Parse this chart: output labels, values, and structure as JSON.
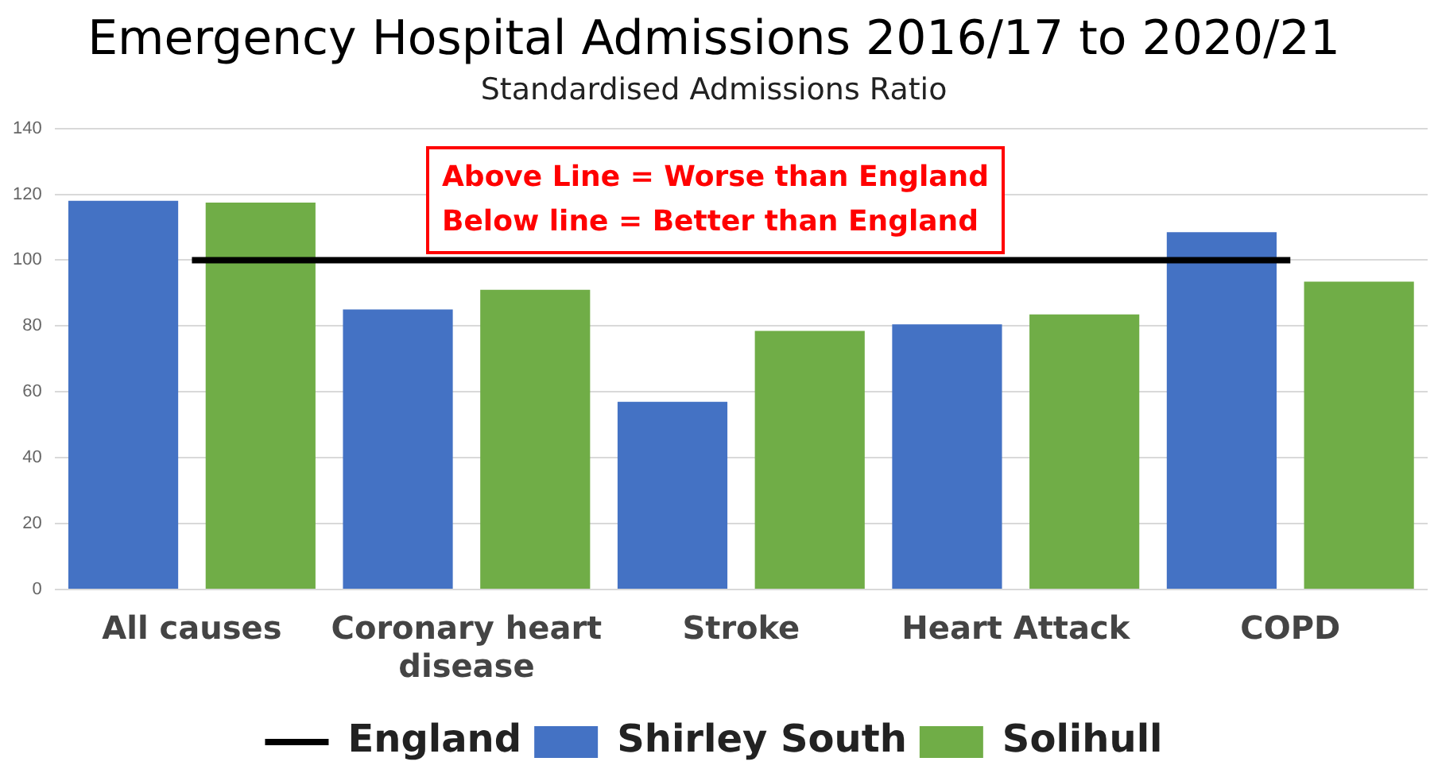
{
  "chart_data": {
    "type": "bar",
    "title": "Emergency Hospital Admissions 2016/17 to 2020/21",
    "subtitle": "Standardised Admissions Ratio",
    "categories": [
      "All causes",
      "Coronary heart disease",
      "Stroke",
      "Heart Attack",
      "COPD"
    ],
    "series": [
      {
        "name": "Shirley South",
        "color": "#4472c4",
        "values": [
          118,
          85,
          57,
          80.5,
          108.5
        ]
      },
      {
        "name": "Solihull",
        "color": "#70ad47",
        "values": [
          117.5,
          91,
          78.5,
          83.5,
          93.5
        ]
      },
      {
        "name": "England",
        "type": "line",
        "color": "#000000",
        "values": [
          100,
          100,
          100,
          100,
          100
        ]
      }
    ],
    "ylim": [
      0,
      140
    ],
    "yticks": [
      0,
      20,
      40,
      60,
      80,
      100,
      120,
      140
    ],
    "grid": "y",
    "legend": "bottom",
    "marker": "none",
    "annotations": [
      "Above Line = Worse than England",
      "Below line = Better than England"
    ]
  }
}
